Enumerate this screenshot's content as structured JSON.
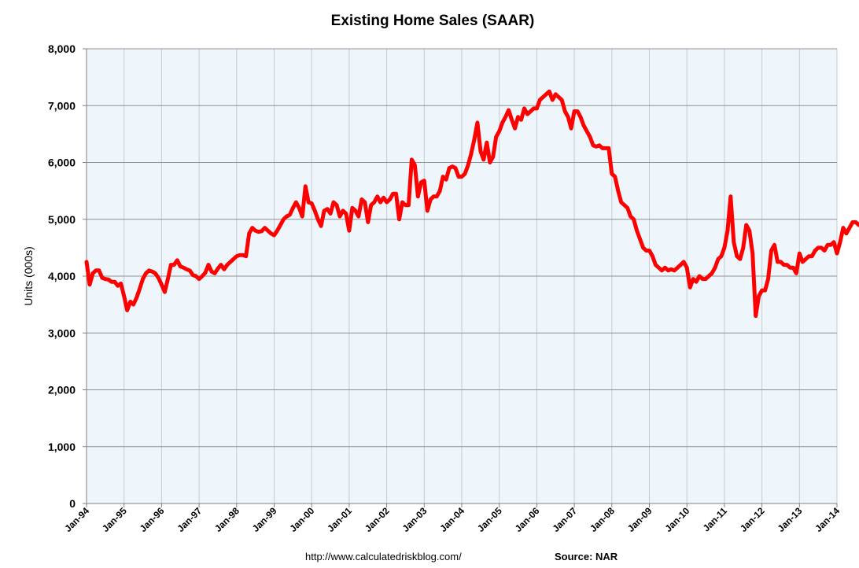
{
  "chart_data": {
    "type": "line",
    "title": "Existing Home Sales (SAAR)",
    "ylabel": "Units (000s)",
    "xlabel": "",
    "ylim": [
      0,
      8000
    ],
    "yticks": [
      0,
      1000,
      2000,
      3000,
      4000,
      5000,
      6000,
      7000,
      8000
    ],
    "ytick_labels": [
      "0",
      "1,000",
      "2,000",
      "3,000",
      "4,000",
      "5,000",
      "6,000",
      "7,000",
      "8,000"
    ],
    "xtick_labels": [
      "Jan-94",
      "Jan-95",
      "Jan-96",
      "Jan-97",
      "Jan-98",
      "Jan-99",
      "Jan-00",
      "Jan-01",
      "Jan-02",
      "Jan-03",
      "Jan-04",
      "Jan-05",
      "Jan-06",
      "Jan-07",
      "Jan-08",
      "Jan-09",
      "Jan-10",
      "Jan-11",
      "Jan-12",
      "Jan-13",
      "Jan-14"
    ],
    "grid": true,
    "colors": {
      "line": "#ff0000",
      "plot_background": "#eef5fb",
      "grid_horizontal": "#909090",
      "grid_vertical": "#c4ccd4"
    },
    "series": [
      {
        "start": "1994-01",
        "frequency": "monthly",
        "values": [
          4250,
          3850,
          4050,
          4100,
          4100,
          3970,
          3950,
          3940,
          3900,
          3900,
          3830,
          3870,
          3650,
          3400,
          3550,
          3500,
          3620,
          3780,
          3950,
          4050,
          4100,
          4080,
          4050,
          3970,
          3850,
          3720,
          3950,
          4200,
          4200,
          4280,
          4170,
          4150,
          4120,
          4100,
          4020,
          4000,
          3950,
          4000,
          4060,
          4200,
          4080,
          4050,
          4130,
          4200,
          4120,
          4200,
          4250,
          4300,
          4350,
          4370,
          4370,
          4350,
          4750,
          4850,
          4800,
          4780,
          4790,
          4850,
          4800,
          4750,
          4720,
          4800,
          4900,
          5000,
          5050,
          5080,
          5200,
          5300,
          5200,
          5050,
          5580,
          5300,
          5280,
          5150,
          5000,
          4880,
          5150,
          5180,
          5100,
          5300,
          5250,
          5050,
          5150,
          5100,
          4800,
          5200,
          5150,
          5050,
          5350,
          5300,
          4950,
          5250,
          5300,
          5400,
          5300,
          5380,
          5300,
          5350,
          5450,
          5450,
          5000,
          5300,
          5250,
          5250,
          6050,
          5950,
          5400,
          5650,
          5680,
          5150,
          5350,
          5400,
          5400,
          5500,
          5750,
          5700,
          5900,
          5930,
          5900,
          5750,
          5750,
          5800,
          5950,
          6150,
          6400,
          6700,
          6200,
          6050,
          6350,
          6000,
          6100,
          6450,
          6550,
          6700,
          6800,
          6920,
          6750,
          6600,
          6800,
          6750,
          6950,
          6850,
          6900,
          6950,
          6950,
          7100,
          7150,
          7200,
          7250,
          7100,
          7200,
          7150,
          7100,
          6900,
          6800,
          6600,
          6900,
          6900,
          6800,
          6650,
          6550,
          6450,
          6300,
          6280,
          6300,
          6250,
          6250,
          6250,
          5800,
          5750,
          5500,
          5300,
          5250,
          5200,
          5050,
          5000,
          4800,
          4650,
          4500,
          4450,
          4450,
          4350,
          4200,
          4150,
          4100,
          4150,
          4100,
          4120,
          4100,
          4150,
          4200,
          4250,
          4150,
          3800,
          3950,
          3900,
          4000,
          3950,
          3950,
          4000,
          4050,
          4150,
          4300,
          4350,
          4500,
          4800,
          5400,
          4600,
          4350,
          4300,
          4500,
          4900,
          4800,
          4400,
          3300,
          3650,
          3750,
          3750,
          3950,
          4450,
          4550,
          4250,
          4250,
          4200,
          4200,
          4150,
          4150,
          4050,
          4400,
          4250,
          4300,
          4350,
          4350,
          4450,
          4500,
          4500,
          4450,
          4550,
          4550,
          4600,
          4400,
          4600,
          4850,
          4750,
          4850,
          4950,
          4950,
          4900,
          4950,
          4950,
          4950,
          4950,
          5000,
          5200
        ]
      }
    ]
  },
  "footer": {
    "url": "http://www.calculatedriskblog.com/",
    "source": "Source: NAR"
  }
}
